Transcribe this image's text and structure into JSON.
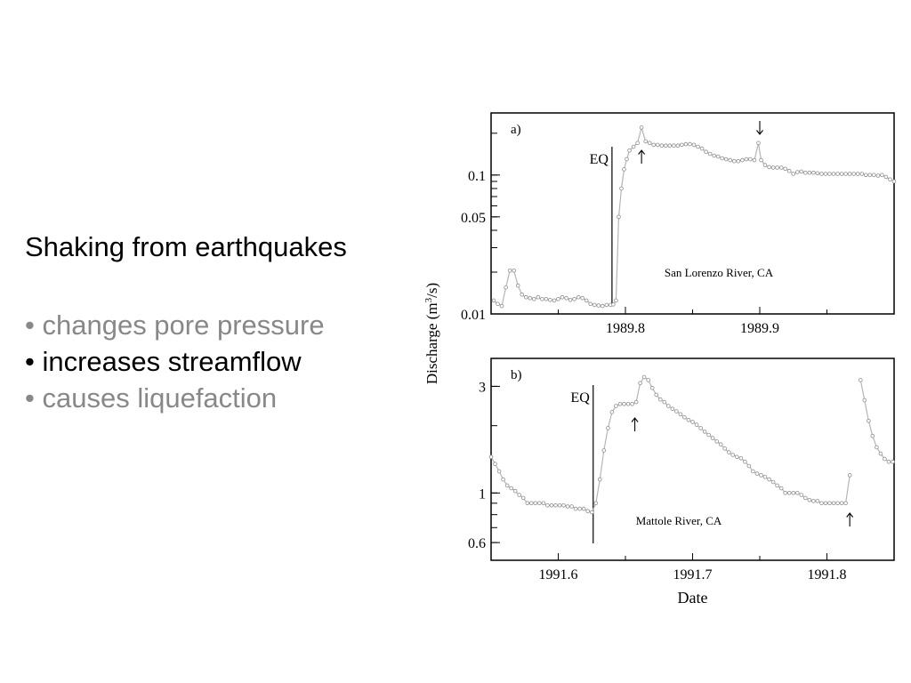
{
  "slide": {
    "heading": "Shaking from earthquakes",
    "bullets": [
      {
        "marker": "•",
        "text": "changes pore pressure",
        "emphasized": false
      },
      {
        "marker": "•",
        "text": "increases streamflow",
        "emphasized": true
      },
      {
        "marker": "•",
        "text": "causes liquefaction",
        "emphasized": false
      }
    ],
    "colors": {
      "emphasized": "#000000",
      "dimmed": "#888888"
    }
  },
  "chart_data": [
    {
      "type": "line",
      "panel_label": "a)",
      "caption": "San Lorenzo River, CA",
      "eq_label": "EQ",
      "eq_x": 1989.79,
      "arrow_marks": [
        {
          "x": 1989.812,
          "direction": "up"
        },
        {
          "x": 1989.9,
          "direction": "down"
        }
      ],
      "y_scale": "log",
      "ylim": [
        0.01,
        0.28
      ],
      "xlim": [
        1989.7,
        1990.0
      ],
      "x_ticks": [
        1989.8,
        1989.9
      ],
      "x_tick_labels": [
        "1989.8",
        "1989.9"
      ],
      "y_ticks": [
        0.01,
        0.05,
        0.1
      ],
      "y_tick_labels": [
        "0.01",
        "0.05",
        "0.1"
      ],
      "x": [
        1989.702,
        1989.705,
        1989.708,
        1989.711,
        1989.714,
        1989.717,
        1989.72,
        1989.723,
        1989.726,
        1989.729,
        1989.732,
        1989.735,
        1989.738,
        1989.741,
        1989.744,
        1989.747,
        1989.75,
        1989.753,
        1989.756,
        1989.759,
        1989.762,
        1989.765,
        1989.768,
        1989.771,
        1989.774,
        1989.777,
        1989.78,
        1989.783,
        1989.786,
        1989.789,
        1989.791,
        1989.793,
        1989.795,
        1989.797,
        1989.799,
        1989.801,
        1989.803,
        1989.806,
        1989.809,
        1989.812,
        1989.815,
        1989.818,
        1989.821,
        1989.824,
        1989.827,
        1989.83,
        1989.833,
        1989.836,
        1989.839,
        1989.842,
        1989.845,
        1989.848,
        1989.851,
        1989.854,
        1989.857,
        1989.86,
        1989.863,
        1989.866,
        1989.869,
        1989.872,
        1989.875,
        1989.878,
        1989.881,
        1989.884,
        1989.887,
        1989.89,
        1989.893,
        1989.896,
        1989.899,
        1989.901,
        1989.904,
        1989.907,
        1989.91,
        1989.913,
        1989.916,
        1989.919,
        1989.922,
        1989.925,
        1989.928,
        1989.931,
        1989.934,
        1989.937,
        1989.94,
        1989.943,
        1989.946,
        1989.949,
        1989.952,
        1989.955,
        1989.958,
        1989.961,
        1989.964,
        1989.967,
        1989.97,
        1989.973,
        1989.976,
        1989.979,
        1989.982,
        1989.985,
        1989.988,
        1989.991,
        1989.994,
        1989.997,
        1990.0
      ],
      "y": [
        0.0125,
        0.0118,
        0.0114,
        0.0155,
        0.0205,
        0.0205,
        0.016,
        0.0138,
        0.0132,
        0.013,
        0.0128,
        0.0132,
        0.0128,
        0.0128,
        0.0126,
        0.0125,
        0.0128,
        0.0132,
        0.013,
        0.0126,
        0.0128,
        0.0132,
        0.013,
        0.0125,
        0.0118,
        0.0116,
        0.0115,
        0.0114,
        0.0116,
        0.0116,
        0.0117,
        0.0125,
        0.05,
        0.08,
        0.11,
        0.13,
        0.15,
        0.16,
        0.17,
        0.22,
        0.175,
        0.17,
        0.165,
        0.165,
        0.163,
        0.163,
        0.163,
        0.163,
        0.163,
        0.165,
        0.167,
        0.167,
        0.165,
        0.16,
        0.155,
        0.147,
        0.142,
        0.138,
        0.136,
        0.132,
        0.13,
        0.128,
        0.126,
        0.126,
        0.128,
        0.13,
        0.13,
        0.128,
        0.17,
        0.128,
        0.118,
        0.114,
        0.113,
        0.113,
        0.113,
        0.111,
        0.107,
        0.102,
        0.105,
        0.106,
        0.104,
        0.104,
        0.104,
        0.103,
        0.102,
        0.102,
        0.102,
        0.102,
        0.102,
        0.102,
        0.102,
        0.102,
        0.102,
        0.102,
        0.102,
        0.1,
        0.1,
        0.1,
        0.099,
        0.1,
        0.097,
        0.093,
        0.09
      ]
    },
    {
      "type": "line",
      "panel_label": "b)",
      "caption": "Mattole River, CA",
      "eq_label": "EQ",
      "eq_x": 1991.626,
      "arrow_marks": [
        {
          "x": 1991.657,
          "direction": "up"
        },
        {
          "x": 1991.817,
          "direction": "up"
        }
      ],
      "y_scale": "log",
      "ylim": [
        0.5,
        4.0
      ],
      "xlim": [
        1991.55,
        1991.85
      ],
      "x_ticks": [
        1991.6,
        1991.7,
        1991.8
      ],
      "x_tick_labels": [
        "1991.6",
        "1991.7",
        "1991.8"
      ],
      "y_ticks": [
        0.6,
        1,
        3
      ],
      "y_tick_labels": [
        "0.6",
        "1",
        "3"
      ],
      "xlabel": "Date",
      "series": [
        {
          "x": [
            1991.55,
            1991.553,
            1991.556,
            1991.559,
            1991.562,
            1991.565,
            1991.568,
            1991.571,
            1991.574,
            1991.577,
            1991.58,
            1991.583,
            1991.586,
            1991.589,
            1991.592,
            1991.595,
            1991.598,
            1991.601,
            1991.604,
            1991.607,
            1991.61,
            1991.613,
            1991.616,
            1991.619,
            1991.622,
            1991.625,
            1991.628,
            1991.631,
            1991.634,
            1991.637,
            1991.64,
            1991.643,
            1991.646,
            1991.649,
            1991.652,
            1991.655,
            1991.658,
            1991.661,
            1991.664,
            1991.667,
            1991.67,
            1991.673,
            1991.676,
            1991.679,
            1991.682,
            1991.685,
            1991.688,
            1991.691,
            1991.694,
            1991.697,
            1991.7,
            1991.703,
            1991.706,
            1991.709,
            1991.712,
            1991.715,
            1991.718,
            1991.721,
            1991.724,
            1991.727,
            1991.73,
            1991.733,
            1991.736,
            1991.739,
            1991.742,
            1991.745,
            1991.748,
            1991.751,
            1991.754,
            1991.757,
            1991.76,
            1991.763,
            1991.766,
            1991.769,
            1991.772,
            1991.775,
            1991.778,
            1991.781,
            1991.784,
            1991.787,
            1991.79,
            1991.793,
            1991.796,
            1991.799,
            1991.802,
            1991.805,
            1991.808,
            1991.811,
            1991.814,
            1991.817
          ],
          "y": [
            1.45,
            1.35,
            1.25,
            1.15,
            1.08,
            1.05,
            1.02,
            0.98,
            0.95,
            0.9,
            0.9,
            0.9,
            0.9,
            0.9,
            0.88,
            0.88,
            0.88,
            0.88,
            0.88,
            0.87,
            0.87,
            0.85,
            0.85,
            0.85,
            0.83,
            0.82,
            0.9,
            1.15,
            1.55,
            1.95,
            2.3,
            2.45,
            2.5,
            2.5,
            2.5,
            2.5,
            2.55,
            3.1,
            3.3,
            3.2,
            2.95,
            2.75,
            2.62,
            2.55,
            2.45,
            2.38,
            2.32,
            2.25,
            2.18,
            2.12,
            2.08,
            2.02,
            1.95,
            1.88,
            1.82,
            1.76,
            1.7,
            1.65,
            1.58,
            1.52,
            1.48,
            1.45,
            1.43,
            1.38,
            1.32,
            1.25,
            1.22,
            1.2,
            1.18,
            1.15,
            1.12,
            1.08,
            1.05,
            1.0,
            1.0,
            1.0,
            1.0,
            0.98,
            0.95,
            0.93,
            0.92,
            0.92,
            0.9,
            0.9,
            0.9,
            0.9,
            0.9,
            0.9,
            0.9,
            1.2
          ]
        },
        {
          "x": [
            1991.825,
            1991.828,
            1991.831,
            1991.834,
            1991.837,
            1991.84,
            1991.843,
            1991.846,
            1991.849
          ],
          "y": [
            3.2,
            2.6,
            2.1,
            1.8,
            1.6,
            1.5,
            1.42,
            1.38,
            1.38
          ]
        }
      ]
    }
  ],
  "shared_ylabel": "Discharge  (m3/s)",
  "shared_ylabel_parts": {
    "before": "Discharge  (m",
    "sup": "3",
    "after": "/s)"
  }
}
